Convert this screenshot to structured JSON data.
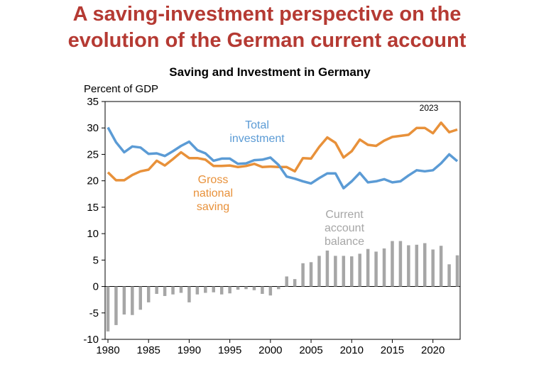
{
  "headline": {
    "line1": "A saving-investment perspective on the",
    "line2": "evolution of the German current account"
  },
  "chart_data": {
    "type": "line",
    "title": "Saving and Investment in Germany",
    "ylabel": "Percent of GDP",
    "xlabel": "",
    "ylim": [
      -10,
      35
    ],
    "xlim": [
      1980,
      2023
    ],
    "yticks": [
      -10,
      -5,
      0,
      5,
      10,
      15,
      20,
      25,
      30,
      35
    ],
    "xticks": [
      1980,
      1985,
      1990,
      1995,
      2000,
      2005,
      2010,
      2015,
      2020
    ],
    "grid": false,
    "annotations": {
      "year_label": "2023",
      "total_investment": [
        "Total",
        "investment"
      ],
      "gross_national_saving": [
        "Gross",
        "national",
        "saving"
      ],
      "current_account_balance": [
        "Current",
        "account",
        "balance"
      ]
    },
    "colors": {
      "total_investment": "#5b9bd5",
      "gross_national_saving": "#e8913a",
      "current_account_balance": "#a6a6a6",
      "headline": "#b53a33"
    },
    "years": [
      1980,
      1981,
      1982,
      1983,
      1984,
      1985,
      1986,
      1987,
      1988,
      1989,
      1990,
      1991,
      1992,
      1993,
      1994,
      1995,
      1996,
      1997,
      1998,
      1999,
      2000,
      2001,
      2002,
      2003,
      2004,
      2005,
      2006,
      2007,
      2008,
      2009,
      2010,
      2011,
      2012,
      2013,
      2014,
      2015,
      2016,
      2017,
      2018,
      2019,
      2020,
      2021,
      2022,
      2023
    ],
    "series": [
      {
        "name": "Total investment",
        "type": "line",
        "values": [
          30.1,
          27.3,
          25.4,
          26.5,
          26.3,
          25.1,
          25.2,
          24.7,
          25.6,
          26.6,
          27.4,
          25.8,
          25.2,
          23.8,
          24.2,
          24.2,
          23.2,
          23.3,
          23.9,
          24.0,
          24.4,
          23.0,
          20.8,
          20.4,
          19.9,
          19.5,
          20.5,
          21.4,
          21.4,
          18.6,
          19.9,
          21.5,
          19.7,
          19.9,
          20.3,
          19.7,
          19.9,
          21.0,
          22.0,
          21.8,
          22.0,
          23.3,
          25.0,
          23.7
        ]
      },
      {
        "name": "Gross national saving",
        "type": "line",
        "values": [
          21.6,
          20.1,
          20.1,
          21.1,
          21.8,
          22.1,
          23.8,
          22.9,
          24.1,
          25.4,
          24.3,
          24.3,
          24.0,
          22.8,
          22.8,
          22.9,
          22.6,
          22.8,
          23.2,
          22.6,
          22.7,
          22.6,
          22.6,
          21.8,
          24.3,
          24.2,
          26.4,
          28.2,
          27.2,
          24.4,
          25.6,
          27.8,
          26.8,
          26.6,
          27.6,
          28.3,
          28.5,
          28.7,
          30.0,
          30.0,
          29.0,
          31.0,
          29.2,
          29.7
        ]
      },
      {
        "name": "Current account balance",
        "type": "bar",
        "values": [
          -8.5,
          -7.3,
          -5.3,
          -5.4,
          -4.4,
          -3.0,
          -1.4,
          -1.8,
          -1.5,
          -1.2,
          -3.0,
          -1.5,
          -1.2,
          -1.1,
          -1.5,
          -1.3,
          -0.6,
          -0.5,
          -0.7,
          -1.4,
          -1.7,
          -0.5,
          1.9,
          1.4,
          4.4,
          4.6,
          5.8,
          6.8,
          5.8,
          5.8,
          5.7,
          6.2,
          7.1,
          6.6,
          7.2,
          8.6,
          8.6,
          7.8,
          7.9,
          8.2,
          7.0,
          7.7,
          4.2,
          5.9
        ]
      }
    ]
  }
}
